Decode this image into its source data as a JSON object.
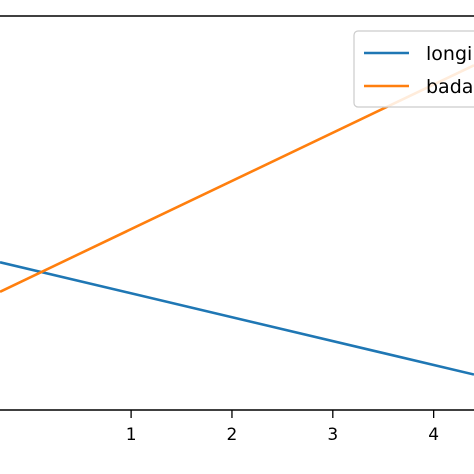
{
  "chart_data": {
    "type": "line",
    "title": "",
    "xlabel": "",
    "ylabel": "",
    "x_ticks": [
      "1",
      "2",
      "3",
      "4"
    ],
    "xlim": [
      -0.3,
      4.4
    ],
    "ylim": [
      0,
      1
    ],
    "grid": false,
    "legend_position": "top-right",
    "series": [
      {
        "name": "longi",
        "color": "#1f77b4",
        "x": [
          -0.3,
          4.4
        ],
        "y": [
          0.375,
          0.09
        ]
      },
      {
        "name": "bada",
        "color": "#ff7f0e",
        "x": [
          -0.3,
          4.4
        ],
        "y": [
          0.3,
          0.875
        ]
      }
    ]
  }
}
